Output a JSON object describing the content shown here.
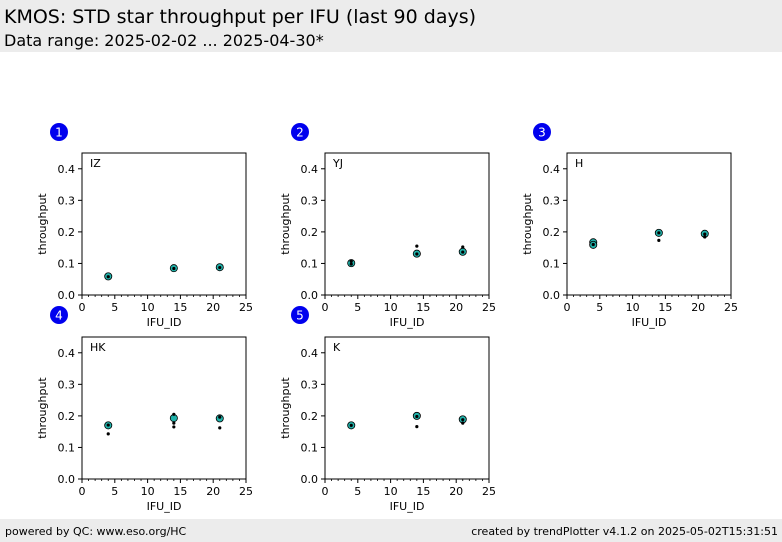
{
  "header": {
    "title": "KMOS: STD star throughput per IFU (last 90 days)",
    "subtitle": "Data range: 2025-02-02 ... 2025-04-30*"
  },
  "footer": {
    "left": "powered by QC: www.eso.org/HC",
    "right": "created by trendPlotter v4.1.2 on 2025-05-02T15:31:51"
  },
  "colors": {
    "marker_face": "#20b2aa",
    "marker_edge": "#000000",
    "point": "#000000",
    "badge": "#0000ee",
    "header_bg": "#ececec"
  },
  "chart_data": [
    {
      "type": "scatter",
      "badge": "1",
      "label": "IZ",
      "xlabel": "IFU_ID",
      "ylabel": "throughput",
      "xlim": [
        0,
        25
      ],
      "ylim": [
        0,
        0.45
      ],
      "xticks": [
        "0",
        "5",
        "10",
        "15",
        "20",
        "25"
      ],
      "yticks": [
        "0.0",
        "0.1",
        "0.2",
        "0.3",
        "0.4"
      ],
      "mean_points": [
        {
          "x": 4,
          "y": 0.059
        },
        {
          "x": 14,
          "y": 0.085
        },
        {
          "x": 21,
          "y": 0.088
        }
      ],
      "points": [
        {
          "x": 4,
          "y": 0.058
        },
        {
          "x": 14,
          "y": 0.084
        },
        {
          "x": 21,
          "y": 0.087
        }
      ]
    },
    {
      "type": "scatter",
      "badge": "2",
      "label": "YJ",
      "xlabel": "IFU_ID",
      "ylabel": "throughput",
      "xlim": [
        0,
        25
      ],
      "ylim": [
        0,
        0.45
      ],
      "xticks": [
        "0",
        "5",
        "10",
        "15",
        "20",
        "25"
      ],
      "yticks": [
        "0.0",
        "0.1",
        "0.2",
        "0.3",
        "0.4"
      ],
      "mean_points": [
        {
          "x": 4,
          "y": 0.101
        },
        {
          "x": 14,
          "y": 0.131
        },
        {
          "x": 21,
          "y": 0.137
        }
      ],
      "points": [
        {
          "x": 4,
          "y": 0.107
        },
        {
          "x": 4,
          "y": 0.098
        },
        {
          "x": 14,
          "y": 0.155
        },
        {
          "x": 14,
          "y": 0.13
        },
        {
          "x": 21,
          "y": 0.152
        },
        {
          "x": 21,
          "y": 0.136
        }
      ]
    },
    {
      "type": "scatter",
      "badge": "3",
      "label": "H",
      "xlabel": "IFU_ID",
      "ylabel": "throughput",
      "xlim": [
        0,
        25
      ],
      "ylim": [
        0,
        0.45
      ],
      "xticks": [
        "0",
        "5",
        "10",
        "15",
        "20",
        "25"
      ],
      "yticks": [
        "0.0",
        "0.1",
        "0.2",
        "0.3",
        "0.4"
      ],
      "mean_points": [
        {
          "x": 4,
          "y": 0.167
        },
        {
          "x": 4,
          "y": 0.159
        },
        {
          "x": 14,
          "y": 0.197
        },
        {
          "x": 21,
          "y": 0.194
        }
      ],
      "points": [
        {
          "x": 4,
          "y": 0.16
        },
        {
          "x": 14,
          "y": 0.173
        },
        {
          "x": 14,
          "y": 0.197
        },
        {
          "x": 21,
          "y": 0.184
        },
        {
          "x": 21,
          "y": 0.193
        }
      ]
    },
    {
      "type": "scatter",
      "badge": "4",
      "label": "HK",
      "xlabel": "IFU_ID",
      "ylabel": "throughput",
      "xlim": [
        0,
        25
      ],
      "ylim": [
        0,
        0.45
      ],
      "xticks": [
        "0",
        "5",
        "10",
        "15",
        "20",
        "25"
      ],
      "yticks": [
        "0.0",
        "0.1",
        "0.2",
        "0.3",
        "0.4"
      ],
      "mean_points": [
        {
          "x": 4,
          "y": 0.17
        },
        {
          "x": 14,
          "y": 0.193
        },
        {
          "x": 21,
          "y": 0.192
        }
      ],
      "points": [
        {
          "x": 4,
          "y": 0.171
        },
        {
          "x": 4,
          "y": 0.143
        },
        {
          "x": 14,
          "y": 0.205
        },
        {
          "x": 14,
          "y": 0.177
        },
        {
          "x": 14,
          "y": 0.165
        },
        {
          "x": 21,
          "y": 0.196
        },
        {
          "x": 21,
          "y": 0.162
        }
      ]
    },
    {
      "type": "scatter",
      "badge": "5",
      "label": "K",
      "xlabel": "IFU_ID",
      "ylabel": "throughput",
      "xlim": [
        0,
        25
      ],
      "ylim": [
        0,
        0.45
      ],
      "xticks": [
        "0",
        "5",
        "10",
        "15",
        "20",
        "25"
      ],
      "yticks": [
        "0.0",
        "0.1",
        "0.2",
        "0.3",
        "0.4"
      ],
      "mean_points": [
        {
          "x": 4,
          "y": 0.17
        },
        {
          "x": 14,
          "y": 0.2
        },
        {
          "x": 21,
          "y": 0.189
        }
      ],
      "points": [
        {
          "x": 4,
          "y": 0.17
        },
        {
          "x": 14,
          "y": 0.198
        },
        {
          "x": 14,
          "y": 0.166
        },
        {
          "x": 21,
          "y": 0.188
        },
        {
          "x": 21,
          "y": 0.177
        }
      ]
    }
  ]
}
